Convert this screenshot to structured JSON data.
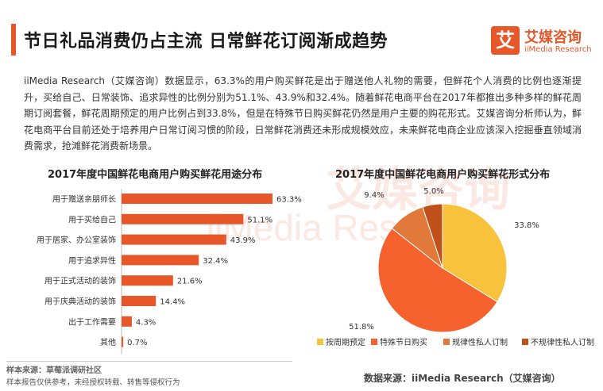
{
  "header": {
    "title": "节日礼品消费仍占主流 日常鲜花订阅渐成趋势",
    "logo_mark": "艾",
    "logo_cn": "艾媒咨询",
    "logo_en": "iiMedia Research"
  },
  "paragraph": "iiMedia Research（艾媒咨询）数据显示，63.3%的用户购买鲜花是出于赠送他人礼物的需要，但鲜花个人消费的比例也逐渐提升，买给自己、日常装饰、追求异性的比例分别为51.1%、43.9%和32.4%。随着鲜花电商平台在2017年都推出多种多样的鲜花周期订阅套餐，鲜花周期预定的用户比例占到33.8%，但是在特殊节日购买鲜花仍然是用户主要的购花形式。艾媒咨询分析师认为，鲜花电商平台目前还处于培养用户日常订阅习惯的阶段，日常鲜花消费还未形成规模效应，未来鲜花电商企业应该深入挖掘垂直领域消费需求，抢滩鲜花消费新场景。",
  "watermark": {
    "cn": "艾媒咨询",
    "en": "iiMedia Research"
  },
  "chart_data": [
    {
      "type": "bar",
      "orientation": "horizontal",
      "title": "2017年度中国鲜花电商用户购买鲜花用途分布",
      "categories": [
        "用于赠送亲朋师长",
        "用于买给自己",
        "用于居家、办公室装饰",
        "用于追求异性",
        "用于正式活动的装饰",
        "用于庆典活动的装饰",
        "出于工作需要",
        "其他"
      ],
      "values": [
        63.3,
        51.1,
        43.9,
        32.4,
        21.6,
        14.4,
        4.3,
        0.7
      ],
      "value_labels": [
        "63.3%",
        "51.1%",
        "43.9%",
        "32.4%",
        "21.6%",
        "14.4%",
        "4.3%",
        "0.7%"
      ],
      "xlim": [
        0,
        63.3
      ],
      "grid": false,
      "color": "#e8572a"
    },
    {
      "type": "pie",
      "title": "2017年度中国鲜花电商用户购买鲜花形式分布",
      "categories": [
        "按周期预定",
        "特殊节日购买",
        "规律性私人订制",
        "不规律性私人订制"
      ],
      "values": [
        33.8,
        51.8,
        9.4,
        5.0
      ],
      "value_labels": [
        "33.8%",
        "51.8%",
        "9.4%",
        "5.0%"
      ],
      "colors": [
        "#f9c23c",
        "#f5622e",
        "#e0793a",
        "#c0511a"
      ],
      "legend_position": "bottom"
    }
  ],
  "footer": {
    "sample_source": "样本来源：草莓派调研社区",
    "sample_note": "样本报告仅供参考，未经授权转载、转售等侵权行为",
    "data_source": "数据来源：iiMedia Research（艾媒咨询）"
  }
}
